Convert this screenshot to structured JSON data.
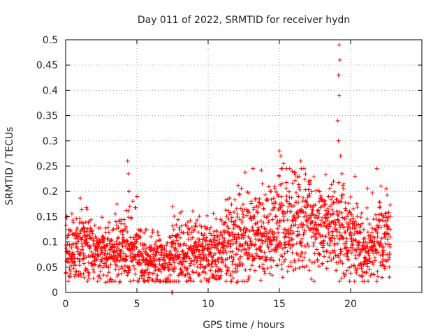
{
  "chart_data": {
    "type": "scatter",
    "title": "Day 011 of 2022, SRMTID for receiver hydn",
    "xlabel": "GPS time / hours",
    "ylabel": "SRMTID / TECUs",
    "xlim": [
      0,
      25
    ],
    "ylim": [
      0,
      0.5
    ],
    "xticks": [
      0,
      5,
      10,
      15,
      20
    ],
    "xtick_labels": [
      "0",
      "5",
      "10",
      "15",
      "20"
    ],
    "yticks": [
      0,
      0.05,
      0.1,
      0.15,
      0.2,
      0.25,
      0.3,
      0.35,
      0.4,
      0.45,
      0.5
    ],
    "ytick_labels": [
      "0",
      "0.05",
      "0.1",
      "0.15",
      "0.2",
      "0.25",
      "0.3",
      "0.35",
      "0.4",
      "0.45",
      "0.5"
    ],
    "grid": true,
    "marker": "+",
    "color": "#ff0000",
    "x_range_of_data": [
      0,
      22.8
    ],
    "trend": [
      {
        "x": 0.0,
        "y": 0.07
      },
      {
        "x": 1.0,
        "y": 0.085
      },
      {
        "x": 2.0,
        "y": 0.08
      },
      {
        "x": 3.0,
        "y": 0.075
      },
      {
        "x": 4.0,
        "y": 0.09
      },
      {
        "x": 5.0,
        "y": 0.075
      },
      {
        "x": 6.0,
        "y": 0.06
      },
      {
        "x": 7.0,
        "y": 0.06
      },
      {
        "x": 8.0,
        "y": 0.08
      },
      {
        "x": 9.0,
        "y": 0.08
      },
      {
        "x": 10.0,
        "y": 0.075
      },
      {
        "x": 11.0,
        "y": 0.085
      },
      {
        "x": 12.0,
        "y": 0.1
      },
      {
        "x": 13.0,
        "y": 0.11
      },
      {
        "x": 14.0,
        "y": 0.1
      },
      {
        "x": 15.0,
        "y": 0.14
      },
      {
        "x": 16.0,
        "y": 0.13
      },
      {
        "x": 17.0,
        "y": 0.13
      },
      {
        "x": 18.0,
        "y": 0.12
      },
      {
        "x": 19.0,
        "y": 0.12
      },
      {
        "x": 20.0,
        "y": 0.11
      },
      {
        "x": 21.0,
        "y": 0.08
      },
      {
        "x": 22.0,
        "y": 0.1
      },
      {
        "x": 22.8,
        "y": 0.1
      }
    ],
    "spikes": [
      {
        "x": 4.35,
        "y": 0.26
      },
      {
        "x": 4.4,
        "y": 0.235
      },
      {
        "x": 4.45,
        "y": 0.2
      },
      {
        "x": 4.5,
        "y": 0.17
      },
      {
        "x": 3.6,
        "y": 0.175
      },
      {
        "x": 5.0,
        "y": 0.19
      },
      {
        "x": 7.5,
        "y": 0.17
      },
      {
        "x": 12.2,
        "y": 0.195
      },
      {
        "x": 13.6,
        "y": 0.185
      },
      {
        "x": 13.8,
        "y": 0.215
      },
      {
        "x": 15.0,
        "y": 0.28
      },
      {
        "x": 15.1,
        "y": 0.27
      },
      {
        "x": 15.3,
        "y": 0.255
      },
      {
        "x": 15.9,
        "y": 0.24
      },
      {
        "x": 16.5,
        "y": 0.26
      },
      {
        "x": 18.8,
        "y": 0.22
      },
      {
        "x": 19.2,
        "y": 0.49
      },
      {
        "x": 19.25,
        "y": 0.46
      },
      {
        "x": 19.15,
        "y": 0.43
      },
      {
        "x": 19.2,
        "y": 0.39
      },
      {
        "x": 19.1,
        "y": 0.34
      },
      {
        "x": 19.15,
        "y": 0.3
      },
      {
        "x": 19.3,
        "y": 0.27
      },
      {
        "x": 19.4,
        "y": 0.235
      },
      {
        "x": 19.5,
        "y": 0.205
      },
      {
        "x": 20.3,
        "y": 0.23
      },
      {
        "x": 22.5,
        "y": 0.205
      }
    ],
    "lows": [
      {
        "x": 2.8,
        "y": 0.02
      },
      {
        "x": 3.8,
        "y": 0.02
      },
      {
        "x": 12.0,
        "y": 0.02
      },
      {
        "x": 7.45,
        "y": 0.0
      },
      {
        "x": 7.47,
        "y": 0.0
      },
      {
        "x": 7.5,
        "y": 0.0
      }
    ],
    "point_count_estimate": 2200
  }
}
